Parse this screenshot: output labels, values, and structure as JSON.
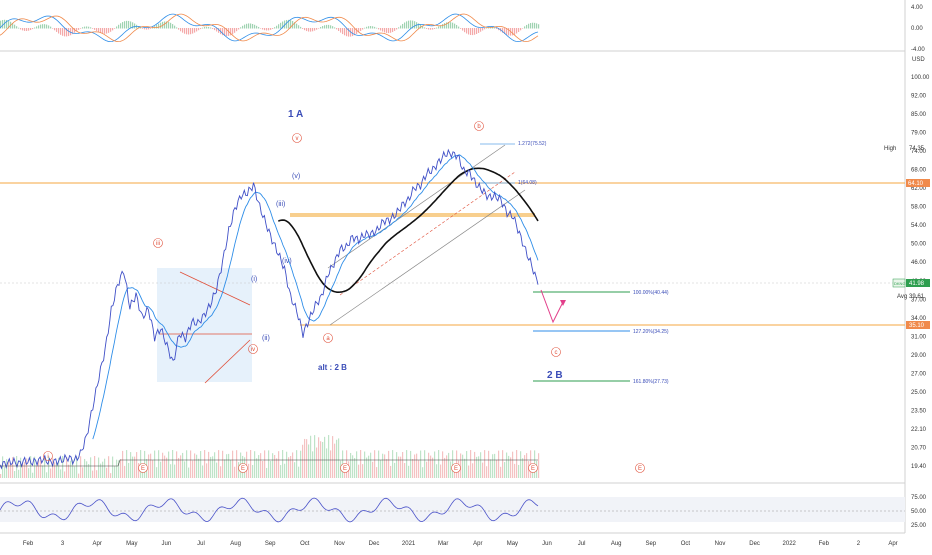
{
  "chart_data": {
    "type": "line",
    "main_axis": {
      "ticks": [
        "100.00",
        "92.00",
        "85.00",
        "79.00",
        "74.00",
        "68.00",
        "62.00",
        "58.00",
        "54.00",
        "50.00",
        "46.00",
        "42.00",
        "37.00",
        "34.00",
        "31.00",
        "29.00",
        "27.00",
        "25.00",
        "23.50",
        "22.10",
        "20.70",
        "19.40"
      ],
      "unit_label": "USD",
      "high_label": "High",
      "high_value": "74.35",
      "price_tag": "64.10",
      "last_symbol": "DKNG",
      "last_value": "41.98",
      "avg_label": "Avg",
      "avg_value": "39.61",
      "low_tag": "35.10"
    },
    "top_axis": {
      "ticks": [
        "4.00",
        "0.00",
        "-4.00"
      ]
    },
    "bottom_axis": {
      "ticks": [
        "75.00",
        "50.00",
        "25.00"
      ]
    },
    "x_ticks": [
      "Feb",
      "3",
      "Apr",
      "May",
      "Jun",
      "Jul",
      "Aug",
      "Sep",
      "Oct",
      "Nov",
      "Dec",
      "2021",
      "Mar",
      "Apr",
      "May",
      "Jun",
      "Jul",
      "Aug",
      "Sep",
      "Oct",
      "Nov",
      "Dec",
      "2022",
      "Feb",
      "2",
      "Apr"
    ],
    "price_series": [
      19.5,
      19.7,
      19.6,
      19.8,
      19.6,
      19.9,
      19.7,
      20.0,
      19.8,
      19.6,
      20.1,
      19.9,
      20.0,
      20.3,
      22,
      25,
      28,
      32,
      37,
      42,
      44,
      38,
      40,
      36,
      38,
      33,
      35,
      32,
      30,
      34,
      33,
      36,
      35,
      37,
      38,
      41,
      46,
      52,
      58,
      60,
      62,
      63,
      58,
      54,
      50,
      48,
      44,
      40,
      37,
      34,
      36,
      38,
      40,
      43,
      46,
      48,
      49,
      51,
      50,
      52,
      51,
      53,
      54,
      55,
      56,
      58,
      60,
      62,
      64,
      66,
      68,
      70,
      72,
      73,
      71,
      68,
      66,
      64,
      62,
      60,
      61,
      59,
      57,
      55,
      52,
      48,
      45,
      42
    ],
    "wave_labels": {
      "title_1A": "1 A",
      "title_2B": "2 B",
      "alt_2B": "alt : 2 B",
      "circled_v": "v",
      "circled_iii": "iii",
      "circled_iv": "iv",
      "circled_b": "b",
      "circled_a": "a",
      "circled_c": "c",
      "circled_i": "i",
      "sub_v": "(v)",
      "sub_iii": "(iii)",
      "sub_iv": "(iv)",
      "sub_i": "(i)",
      "sub_ii": "(ii)"
    },
    "fib_levels": [
      {
        "label": "1.272(75.52)"
      },
      {
        "label": "1(64.08)"
      },
      {
        "label": "100.00%(40.44)"
      },
      {
        "label": "127.20%(34.25)"
      },
      {
        "label": "161.80%(27.73)"
      }
    ],
    "event_marker": "E",
    "colors": {
      "price": "#3f4fc7",
      "ma": "#111111",
      "fast_ma": "#2f8ee8",
      "orange": "#f5a742",
      "red": "#e0503a",
      "green": "#2e9e4f",
      "pink": "#e23e8a"
    }
  }
}
